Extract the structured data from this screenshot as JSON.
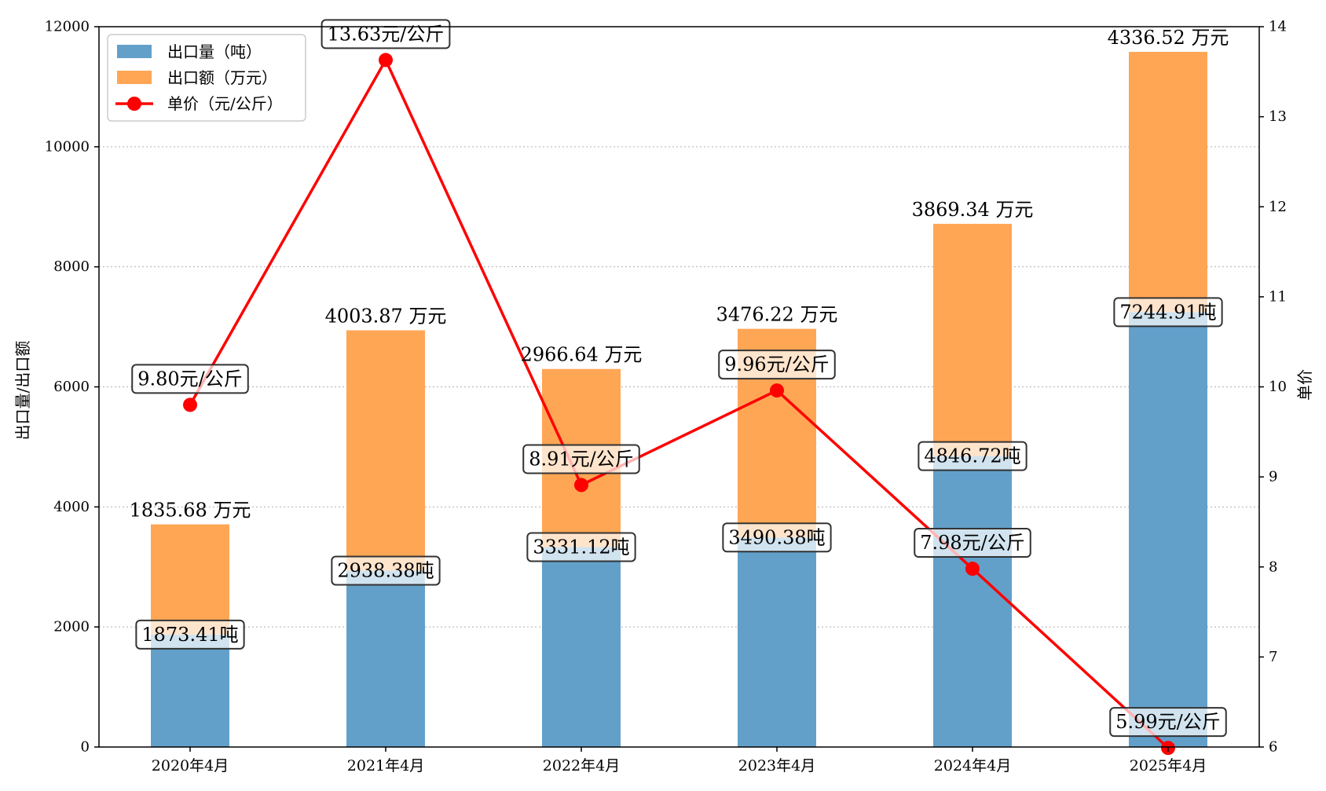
{
  "chart_data": {
    "type": "bar",
    "categories": [
      "2020年4月",
      "2021年4月",
      "2022年4月",
      "2023年4月",
      "2024年4月",
      "2025年4月"
    ],
    "series": [
      {
        "name": "出口量（吨）",
        "kind": "stacked-bar",
        "axis": "left",
        "color": "#62a0ca",
        "values": [
          1873.41,
          2938.38,
          3331.12,
          3490.38,
          4846.72,
          7244.91
        ],
        "labels": [
          "1873.41吨",
          "2938.38吨",
          "3331.12吨",
          "3490.38吨",
          "4846.72吨",
          "7244.91吨"
        ]
      },
      {
        "name": "出口额（万元）",
        "kind": "stacked-bar",
        "axis": "left",
        "color": "#ffa655",
        "values": [
          1835.68,
          4003.87,
          2966.64,
          3476.22,
          3869.34,
          4336.52
        ],
        "labels": [
          "1835.68 万元",
          "4003.87 万元",
          "2966.64 万元",
          "3476.22 万元",
          "3869.34 万元",
          "4336.52 万元"
        ]
      },
      {
        "name": "单价（元/公斤）",
        "kind": "line",
        "axis": "right",
        "color": "#ff0000",
        "values": [
          9.8,
          13.63,
          8.91,
          9.96,
          7.98,
          5.99
        ],
        "labels": [
          "9.80元/公斤",
          "13.63元/公斤",
          "8.91元/公斤",
          "9.96元/公斤",
          "7.98元/公斤",
          "5.99元/公斤"
        ]
      }
    ],
    "ylabel": "出口量/出口额",
    "y2label": "单价",
    "ylim": [
      0,
      12000
    ],
    "y2lim": [
      6,
      14
    ],
    "yticks": [
      "0",
      "2000",
      "4000",
      "6000",
      "8000",
      "10000",
      "12000"
    ],
    "y2ticks": [
      "6",
      "7",
      "8",
      "9",
      "10",
      "11",
      "12",
      "13",
      "14"
    ],
    "grid": "horizontal dotted",
    "legend_position": "top-left"
  }
}
